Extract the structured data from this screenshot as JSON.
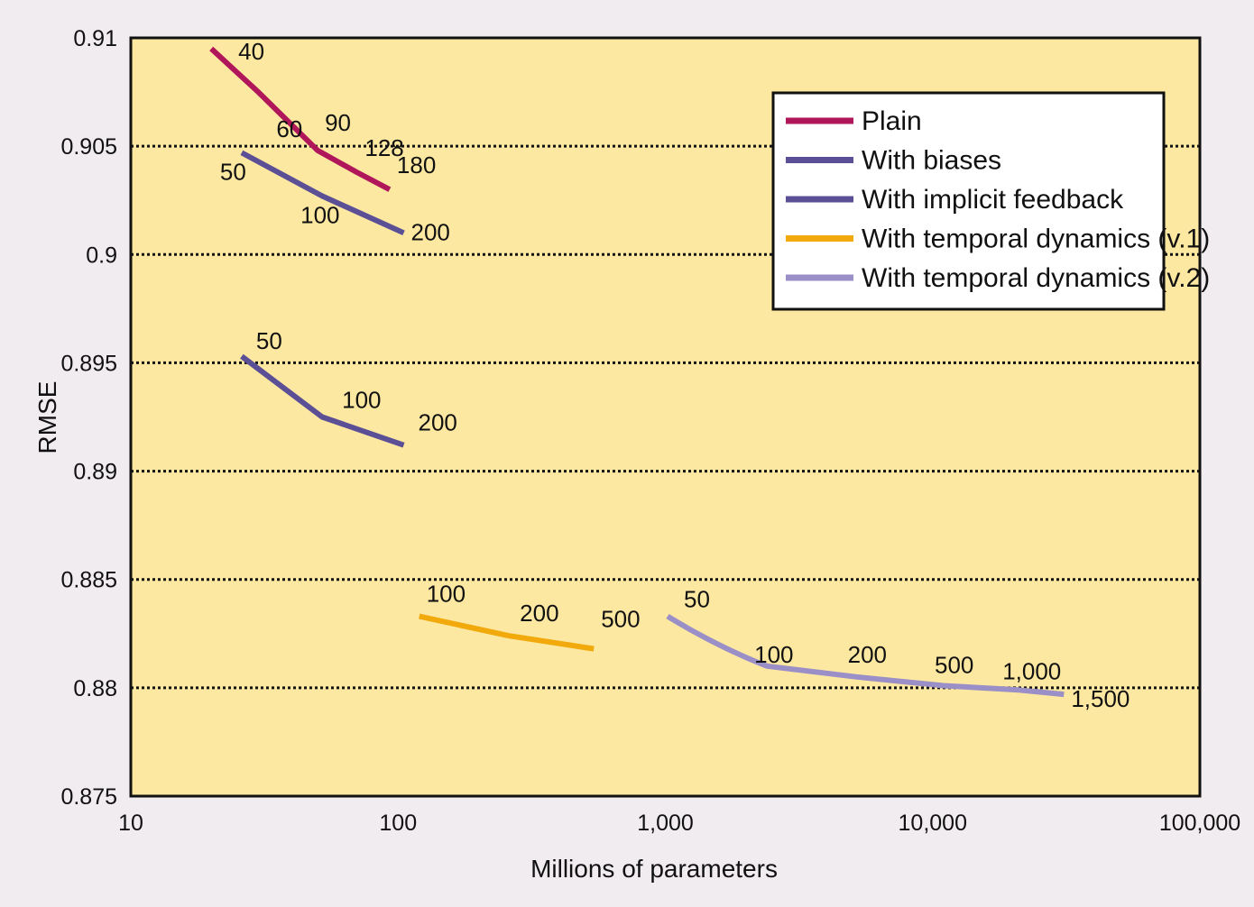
{
  "chart_data": {
    "type": "line",
    "title": "",
    "xlabel": "Millions of parameters",
    "ylabel": "RMSE",
    "xscale": "log",
    "xlim": [
      10,
      100000
    ],
    "ylim": [
      0.875,
      0.91
    ],
    "x_ticks": [
      {
        "value": 10,
        "label": "10"
      },
      {
        "value": 100,
        "label": "100"
      },
      {
        "value": 1000,
        "label": "1,000"
      },
      {
        "value": 10000,
        "label": "10,000"
      },
      {
        "value": 100000,
        "label": "100,000"
      }
    ],
    "y_ticks": [
      {
        "value": 0.875,
        "label": "0.875"
      },
      {
        "value": 0.88,
        "label": "0.88"
      },
      {
        "value": 0.885,
        "label": "0.885"
      },
      {
        "value": 0.89,
        "label": "0.89"
      },
      {
        "value": 0.895,
        "label": "0.895"
      },
      {
        "value": 0.9,
        "label": "0.9"
      },
      {
        "value": 0.905,
        "label": "0.905"
      },
      {
        "value": 0.91,
        "label": "0.91"
      }
    ],
    "grid": true,
    "legend_position": "top-right",
    "plot_background": "#fde8a1",
    "series": [
      {
        "name": "Plain",
        "color": "#b0165a",
        "points": [
          {
            "x": 20,
            "y": 0.9095,
            "label": "40"
          },
          {
            "x": 30,
            "y": 0.9075,
            "label": "60"
          },
          {
            "x": 50,
            "y": 0.9048,
            "label": "90"
          },
          {
            "x": 70,
            "y": 0.9038,
            "label": "128"
          },
          {
            "x": 93,
            "y": 0.903,
            "label": "180"
          }
        ]
      },
      {
        "name": "With biases",
        "color": "#5b4f95",
        "points": [
          {
            "x": 26,
            "y": 0.9047,
            "label": "50"
          },
          {
            "x": 52,
            "y": 0.9027,
            "label": "100"
          },
          {
            "x": 105,
            "y": 0.901,
            "label": "200"
          }
        ]
      },
      {
        "name": "With implicit feedback",
        "color": "#5b4f95",
        "points": [
          {
            "x": 26,
            "y": 0.8953,
            "label": "50"
          },
          {
            "x": 52,
            "y": 0.8925,
            "label": "100"
          },
          {
            "x": 105,
            "y": 0.8912,
            "label": "200"
          }
        ]
      },
      {
        "name": "With temporal dynamics (v.1)",
        "color": "#f1a90b",
        "points": [
          {
            "x": 120,
            "y": 0.8833,
            "label": "100"
          },
          {
            "x": 260,
            "y": 0.8824,
            "label": "200"
          },
          {
            "x": 540,
            "y": 0.8818,
            "label": "500"
          }
        ]
      },
      {
        "name": "With temporal dynamics (v.2)",
        "color": "#9a8fc7",
        "points": [
          {
            "x": 1020,
            "y": 0.8833,
            "label": "50"
          },
          {
            "x": 2400,
            "y": 0.881,
            "label": "100"
          },
          {
            "x": 5200,
            "y": 0.8805,
            "label": "200"
          },
          {
            "x": 11000,
            "y": 0.8801,
            "label": "500"
          },
          {
            "x": 21000,
            "y": 0.8799,
            "label": "1,000"
          },
          {
            "x": 31000,
            "y": 0.8797,
            "label": "1,500"
          }
        ]
      }
    ]
  }
}
